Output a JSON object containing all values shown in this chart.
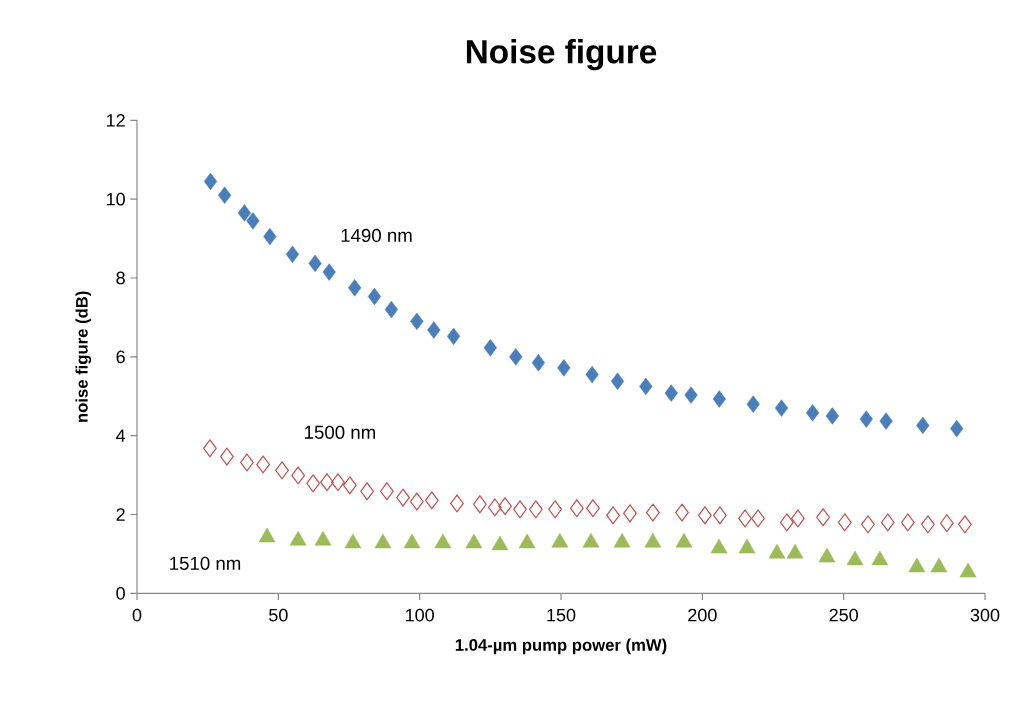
{
  "chart_data": {
    "type": "scatter",
    "title": "Noise figure",
    "xlabel": "1.04-µm pump power (mW)",
    "ylabel": "noise figure (dB)",
    "xlim": [
      0,
      300
    ],
    "xticks": [
      0,
      50,
      100,
      150,
      200,
      250,
      300
    ],
    "ylim": [
      0,
      12
    ],
    "yticks": [
      0,
      2,
      4,
      6,
      8,
      10,
      12
    ],
    "grid": false,
    "legend": false,
    "series": [
      {
        "name": "1490 nm",
        "color": "#4a7ebb",
        "marker": "diamond",
        "x": [
          26,
          31,
          38,
          41,
          47,
          55,
          63,
          68,
          77,
          84,
          90,
          99,
          105,
          112,
          125,
          134,
          142,
          151,
          161,
          170,
          180,
          189,
          196,
          206,
          218,
          228,
          239,
          246,
          258,
          265,
          278,
          290
        ],
        "values": [
          10.45,
          10.1,
          9.65,
          9.45,
          9.05,
          8.6,
          8.37,
          8.15,
          7.75,
          7.53,
          7.2,
          6.9,
          6.68,
          6.52,
          6.23,
          6.0,
          5.85,
          5.72,
          5.55,
          5.38,
          5.25,
          5.08,
          5.03,
          4.93,
          4.8,
          4.7,
          4.58,
          4.5,
          4.42,
          4.37,
          4.26,
          4.18
        ]
      },
      {
        "name": "1500 nm",
        "color": "#c0504d",
        "marker": "diamond",
        "x": [
          25.8,
          31.8,
          38.9,
          44.6,
          51.3,
          57,
          62.3,
          67.2,
          71.1,
          75.3,
          81.4,
          88.4,
          94.1,
          99,
          104.3,
          113.2,
          121.3,
          126.6,
          130.2,
          135.5,
          141.1,
          147.9,
          155.6,
          161.3,
          168.4,
          174.4,
          182.5,
          192.8,
          200.9,
          206.2,
          215.1,
          219.7,
          229.9,
          233.8,
          242.7,
          250.4,
          258.6,
          265.6,
          272.7,
          279.8,
          286.5,
          292.9
        ],
        "values": [
          3.68,
          3.47,
          3.32,
          3.27,
          3.12,
          2.99,
          2.79,
          2.82,
          2.82,
          2.74,
          2.59,
          2.59,
          2.43,
          2.33,
          2.36,
          2.28,
          2.26,
          2.18,
          2.21,
          2.13,
          2.13,
          2.13,
          2.16,
          2.16,
          1.98,
          2.03,
          2.05,
          2.05,
          1.98,
          1.98,
          1.9,
          1.9,
          1.8,
          1.9,
          1.93,
          1.8,
          1.75,
          1.8,
          1.8,
          1.75,
          1.78,
          1.75
        ]
      },
      {
        "name": "1510 nm",
        "color": "#9bbb59",
        "marker": "triangle",
        "x": [
          46,
          57,
          65.8,
          76.4,
          87,
          97.3,
          108.2,
          119.2,
          128.4,
          138,
          149.6,
          160.6,
          171.6,
          182.5,
          193.5,
          205.9,
          215.8,
          226.4,
          232.8,
          244.1,
          254,
          262.8,
          275.9,
          283.7,
          294
        ],
        "values": [
          1.42,
          1.34,
          1.34,
          1.27,
          1.27,
          1.27,
          1.27,
          1.27,
          1.22,
          1.27,
          1.29,
          1.29,
          1.29,
          1.29,
          1.29,
          1.14,
          1.14,
          1.01,
          1.01,
          0.91,
          0.84,
          0.84,
          0.66,
          0.66,
          0.53
        ]
      }
    ]
  }
}
